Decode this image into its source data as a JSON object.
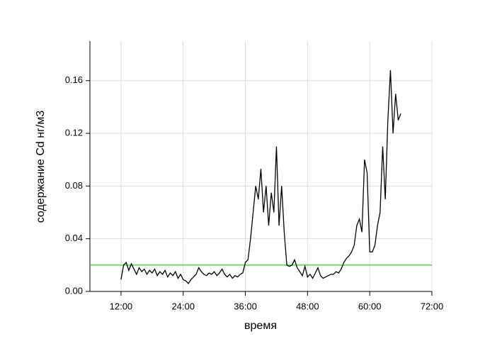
{
  "chart_data": {
    "type": "line",
    "x_label": "время",
    "y_label": "содержание Cd нг/м3",
    "x": [
      12,
      12.5,
      13,
      13.5,
      14,
      14.5,
      15,
      15.5,
      16,
      16.5,
      17,
      17.5,
      18,
      18.5,
      19,
      19.5,
      20,
      20.5,
      21,
      21.5,
      22,
      22.5,
      23,
      23.5,
      24,
      24.5,
      25,
      25.5,
      26,
      26.5,
      27,
      27.5,
      28,
      28.5,
      29,
      29.5,
      30,
      30.5,
      31,
      31.5,
      32,
      32.5,
      33,
      33.5,
      34,
      34.5,
      35,
      35.5,
      36,
      36.5,
      37,
      37.5,
      38,
      38.5,
      39,
      39.5,
      40,
      40.5,
      41,
      41.5,
      42,
      42.5,
      43,
      43.5,
      44,
      44.5,
      45,
      45.5,
      46,
      46.5,
      47,
      47.5,
      48,
      48.5,
      49,
      49.5,
      50,
      50.5,
      51,
      51.5,
      52,
      52.5,
      53,
      53.5,
      54,
      54.5,
      55,
      55.5,
      56,
      56.5,
      57,
      57.5,
      58,
      58.5,
      59,
      59.5,
      60,
      60.5,
      61,
      61.5,
      62,
      62.5,
      63,
      63.5,
      64,
      64.5,
      65,
      65.5,
      66
    ],
    "series": [
      {
        "color": "#000000",
        "values": [
          0.009,
          0.02,
          0.022,
          0.016,
          0.021,
          0.017,
          0.013,
          0.018,
          0.015,
          0.017,
          0.013,
          0.016,
          0.014,
          0.017,
          0.012,
          0.015,
          0.013,
          0.016,
          0.011,
          0.014,
          0.012,
          0.015,
          0.01,
          0.013,
          0.009,
          0.008,
          0.006,
          0.009,
          0.011,
          0.013,
          0.018,
          0.015,
          0.013,
          0.012,
          0.014,
          0.013,
          0.015,
          0.012,
          0.014,
          0.017,
          0.013,
          0.011,
          0.013,
          0.01,
          0.012,
          0.011,
          0.013,
          0.014,
          0.022,
          0.024,
          0.04,
          0.06,
          0.08,
          0.07,
          0.093,
          0.06,
          0.08,
          0.05,
          0.075,
          0.06,
          0.11,
          0.05,
          0.08,
          0.045,
          0.02,
          0.019,
          0.02,
          0.024,
          0.018,
          0.015,
          0.012,
          0.019,
          0.011,
          0.013,
          0.01,
          0.014,
          0.018,
          0.012,
          0.01,
          0.011,
          0.012,
          0.013,
          0.013,
          0.015,
          0.014,
          0.017,
          0.022,
          0.025,
          0.027,
          0.03,
          0.035,
          0.05,
          0.055,
          0.045,
          0.1,
          0.09,
          0.03,
          0.03,
          0.035,
          0.05,
          0.06,
          0.11,
          0.07,
          0.13,
          0.168,
          0.12,
          0.15,
          0.13,
          0.135
        ]
      }
    ],
    "reference_line": {
      "value": 0.02,
      "color": "#22dd22"
    },
    "xlim": [
      6,
      72
    ],
    "xticks": [
      {
        "value": 12,
        "label": "12:00"
      },
      {
        "value": 24,
        "label": "24:00"
      },
      {
        "value": 36,
        "label": "36:00"
      },
      {
        "value": 48,
        "label": "48:00"
      },
      {
        "value": 60,
        "label": "60:00"
      },
      {
        "value": 72,
        "label": "72:00"
      }
    ],
    "ylim": [
      0,
      0.19
    ],
    "yticks": [
      {
        "value": 0,
        "label": "0.00"
      },
      {
        "value": 0.04,
        "label": "0.04"
      },
      {
        "value": 0.08,
        "label": "0.08"
      },
      {
        "value": 0.12,
        "label": "0.12"
      },
      {
        "value": 0.16,
        "label": "0.16"
      }
    ],
    "grid": true
  }
}
